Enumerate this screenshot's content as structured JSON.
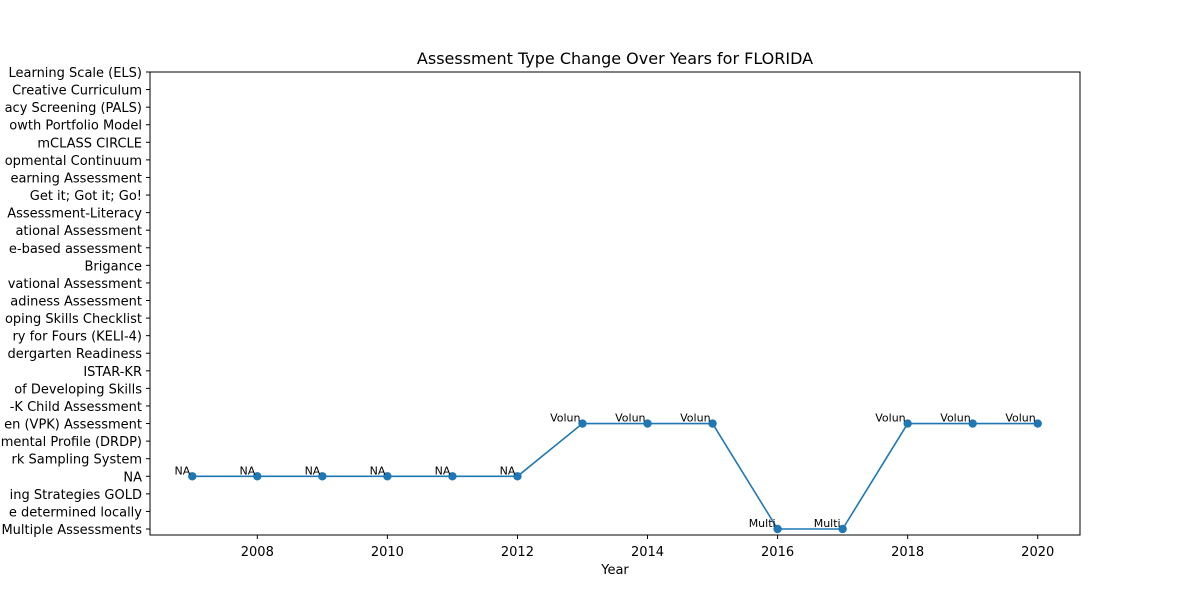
{
  "chart_data": {
    "type": "line",
    "title": "Assessment Type Change Over Years for FLORIDA",
    "xlabel": "Year",
    "ylabel": "",
    "x": [
      2007,
      2008,
      2009,
      2010,
      2011,
      2012,
      2013,
      2014,
      2015,
      2016,
      2017,
      2018,
      2019,
      2020
    ],
    "y": [
      "NA",
      "NA",
      "NA",
      "NA",
      "NA",
      "NA",
      "Voluntary Prekindergarten (VPK) Assessment",
      "Voluntary Prekindergarten (VPK) Assessment",
      "Voluntary Prekindergarten (VPK) Assessment",
      "Multiple Assessments",
      "Multiple Assessments",
      "Voluntary Prekindergarten (VPK) Assessment",
      "Voluntary Prekindergarten (VPK) Assessment",
      "Voluntary Prekindergarten (VPK) Assessment"
    ],
    "point_labels": [
      "NA",
      "NA",
      "NA",
      "NA",
      "NA",
      "NA",
      "Volun",
      "Volun",
      "Volun",
      "Multi",
      "Multi",
      "Volun",
      "Volun",
      "Volun"
    ],
    "y_categories": [
      "Multiple Assessments",
      "e determined locally",
      "ing Strategies GOLD",
      "NA",
      "rk Sampling System",
      "mental Profile (DRDP)",
      "en (VPK) Assessment",
      "-K Child Assessment",
      " of Developing Skills",
      "ISTAR-KR",
      "dergarten Readiness",
      "ry for Fours (KELI-4) ",
      "oping Skills Checklist",
      "adiness Assessment",
      "vational Assessment",
      "Brigance",
      "e-based assessment",
      "ational Assessment ",
      "Assessment-Literacy",
      "Get it; Got it; Go!",
      "earning Assessment",
      "opmental Continuum",
      "mCLASS CIRCLE",
      "owth Portfolio Model",
      "acy Screening (PALS)",
      "Creative Curriculum",
      "Learning Scale (ELS)"
    ],
    "y_index": [
      3,
      3,
      3,
      3,
      3,
      3,
      6,
      6,
      6,
      0,
      0,
      6,
      6,
      6
    ],
    "x_ticks": [
      2008,
      2010,
      2012,
      2014,
      2016,
      2018,
      2020
    ],
    "xlim": [
      2006.35,
      2020.65
    ],
    "grid": false,
    "legend": "none",
    "line_color": "#1f77b4"
  }
}
